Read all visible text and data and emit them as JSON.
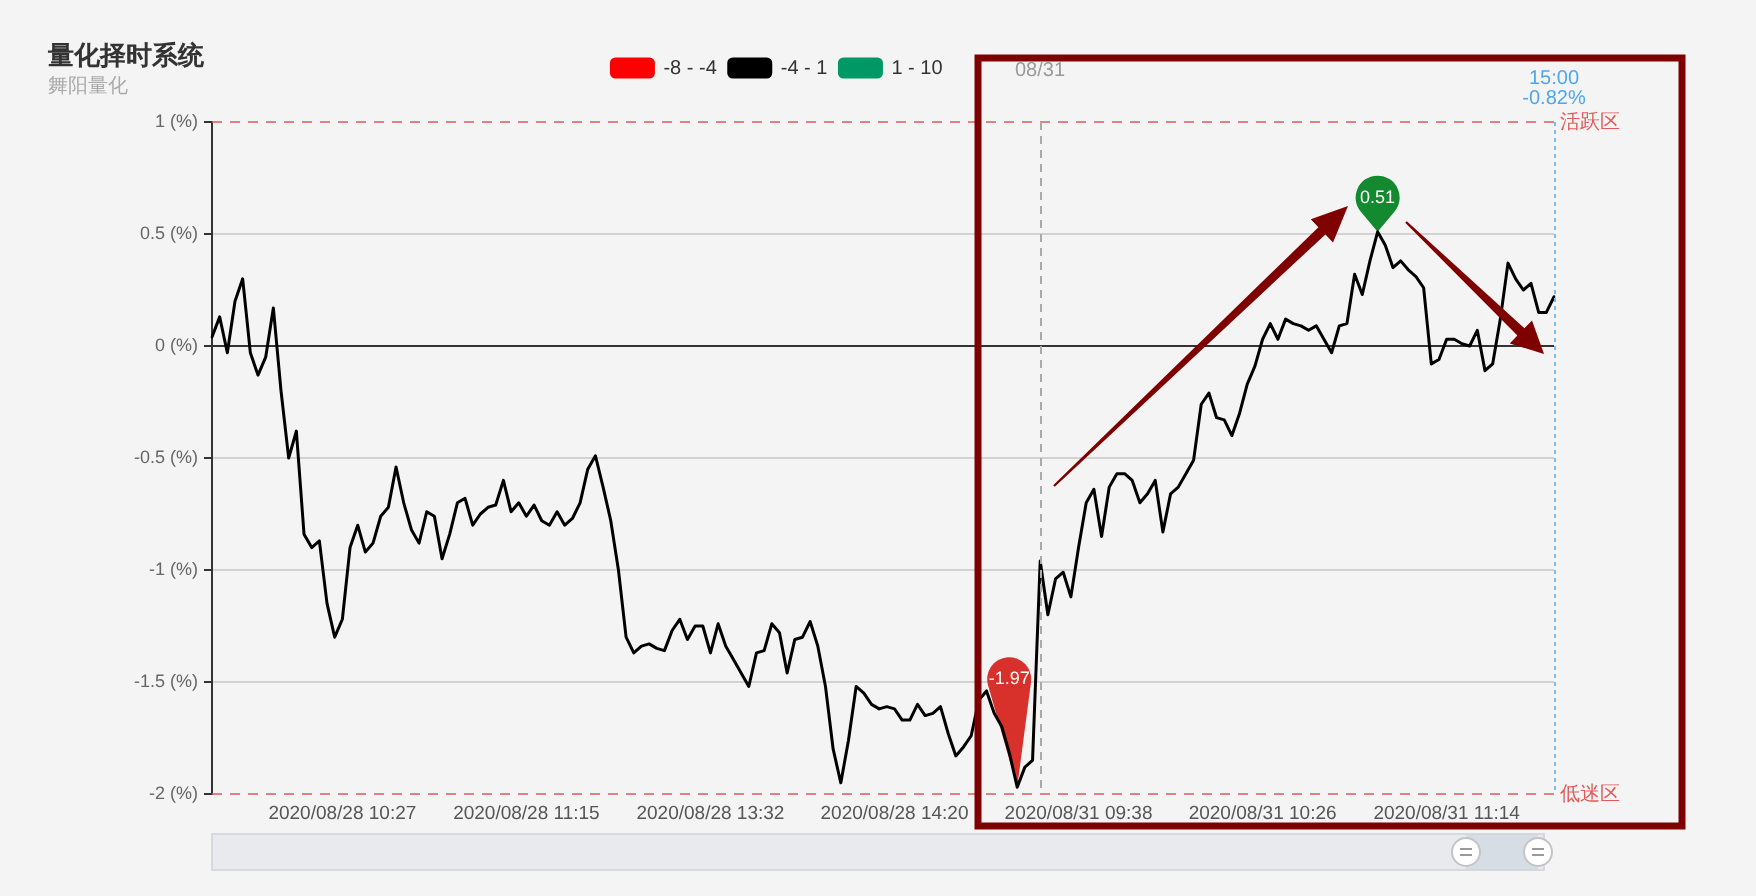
{
  "chart_data": {
    "type": "line",
    "title": "量化择时系统",
    "subtitle": "舞阳量化",
    "categories": [
      null,
      null,
      null,
      null,
      null,
      null,
      null,
      null,
      null,
      null,
      null,
      null,
      null,
      null,
      null,
      null,
      null,
      "2020/08/28 10:27",
      null,
      null,
      null,
      null,
      null,
      null,
      null,
      null,
      null,
      null,
      null,
      null,
      null,
      null,
      null,
      null,
      null,
      null,
      null,
      null,
      null,
      null,
      null,
      "2020/08/28 11:15",
      null,
      null,
      null,
      null,
      null,
      null,
      null,
      null,
      null,
      null,
      null,
      null,
      null,
      null,
      null,
      null,
      null,
      null,
      null,
      null,
      null,
      null,
      null,
      "2020/08/28 13:32",
      null,
      null,
      null,
      null,
      null,
      null,
      null,
      null,
      null,
      null,
      null,
      null,
      null,
      null,
      null,
      null,
      null,
      null,
      null,
      null,
      null,
      null,
      null,
      "2020/08/28 14:20",
      null,
      null,
      null,
      null,
      null,
      null,
      null,
      null,
      null,
      null,
      null,
      null,
      null,
      null,
      null,
      null,
      null,
      null,
      null,
      null,
      null,
      null,
      null,
      "2020/08/31 09:38",
      null,
      null,
      null,
      null,
      null,
      null,
      null,
      null,
      null,
      null,
      null,
      null,
      null,
      null,
      null,
      null,
      null,
      null,
      null,
      null,
      null,
      null,
      null,
      "2020/08/31 10:26",
      null,
      null,
      null,
      null,
      null,
      null,
      null,
      null,
      null,
      null,
      null,
      null,
      null,
      null,
      null,
      null,
      null,
      null,
      null,
      null,
      null,
      null,
      null,
      "2020/08/31 11:14",
      null,
      null,
      null,
      null,
      null,
      null,
      null,
      null,
      null,
      null,
      null,
      null,
      null,
      null
    ],
    "series": [
      {
        "name": "-8 - -4",
        "color": "#ff0000",
        "values": [
          null,
          null,
          null,
          null,
          null,
          null,
          null,
          null,
          null,
          null,
          null,
          null,
          null,
          null,
          null,
          null,
          null,
          null,
          null,
          null,
          null,
          null,
          null,
          null,
          null,
          null,
          null,
          null,
          null,
          null,
          null,
          null,
          null,
          null,
          null,
          null,
          null,
          null,
          null,
          null,
          null,
          null,
          null,
          null,
          null,
          null,
          null,
          null,
          null,
          null,
          null,
          null,
          null,
          null,
          null,
          null,
          null,
          null,
          null,
          null,
          null,
          null,
          null,
          null,
          null,
          null,
          null,
          null,
          null,
          null,
          null,
          null,
          null,
          null,
          null,
          null,
          null,
          null,
          null,
          null,
          null,
          null,
          null,
          null,
          null,
          null,
          null,
          null,
          null,
          null,
          null,
          null,
          null,
          null,
          null,
          null,
          null,
          null,
          null,
          null,
          null,
          null,
          null,
          null,
          null,
          null,
          null,
          null,
          null,
          null,
          null,
          null,
          null,
          null,
          null,
          null,
          null,
          null,
          null,
          null,
          null,
          null,
          null,
          null,
          null,
          null,
          null,
          null,
          null,
          null,
          null,
          null,
          null,
          null,
          null,
          null,
          null,
          null,
          null,
          null,
          null,
          null,
          null,
          null,
          null,
          null,
          null,
          null,
          null,
          null,
          null,
          null,
          null,
          null,
          null,
          null,
          null,
          null,
          null,
          null,
          null,
          null,
          null,
          null,
          null,
          null,
          null,
          null,
          null,
          null,
          null,
          null,
          null,
          null,
          null,
          null
        ]
      },
      {
        "name": "-4 - 1",
        "color": "#000000",
        "values": [
          0.04,
          0.13,
          -0.03,
          0.2,
          0.3,
          -0.03,
          -0.13,
          -0.05,
          0.17,
          -0.2,
          -0.5,
          -0.38,
          -0.84,
          -0.9,
          -0.87,
          -1.15,
          -1.3,
          -1.22,
          -0.9,
          -0.8,
          -0.92,
          -0.88,
          -0.76,
          -0.72,
          -0.54,
          -0.7,
          -0.82,
          -0.88,
          -0.74,
          -0.76,
          -0.95,
          -0.84,
          -0.7,
          -0.68,
          -0.8,
          -0.75,
          -0.72,
          -0.71,
          -0.6,
          -0.74,
          -0.7,
          -0.76,
          -0.71,
          -0.78,
          -0.8,
          -0.74,
          -0.8,
          -0.77,
          -0.7,
          -0.55,
          -0.49,
          -0.63,
          -0.78,
          -1,
          -1.3,
          -1.37,
          -1.34,
          -1.33,
          -1.35,
          -1.36,
          -1.27,
          -1.22,
          -1.31,
          -1.25,
          -1.25,
          -1.37,
          -1.24,
          -1.34,
          -1.4,
          -1.46,
          -1.52,
          -1.37,
          -1.36,
          -1.24,
          -1.28,
          -1.46,
          -1.31,
          -1.3,
          -1.23,
          -1.34,
          -1.52,
          -1.8,
          -1.95,
          -1.76,
          -1.52,
          -1.55,
          -1.6,
          -1.62,
          -1.61,
          -1.62,
          -1.67,
          -1.67,
          -1.6,
          -1.65,
          -1.64,
          -1.61,
          -1.73,
          -1.83,
          -1.79,
          -1.74,
          -1.58,
          -1.54,
          -1.64,
          -1.7,
          -1.82,
          -1.97,
          -1.88,
          -1.85,
          -0.96,
          -1.2,
          -1.04,
          -1.01,
          -1.12,
          -0.9,
          -0.7,
          -0.64,
          -0.85,
          -0.63,
          -0.57,
          -0.57,
          -0.6,
          -0.7,
          -0.66,
          -0.6,
          -0.83,
          -0.66,
          -0.63,
          -0.57,
          -0.51,
          -0.26,
          -0.21,
          -0.32,
          -0.33,
          -0.4,
          -0.3,
          -0.17,
          -0.09,
          0.03,
          0.1,
          0.03,
          0.12,
          0.1,
          0.09,
          0.07,
          0.09,
          0.03,
          -0.03,
          0.09,
          0.1,
          0.32,
          0.23,
          0.38,
          0.51,
          0.45,
          0.35,
          0.38,
          0.34,
          0.31,
          0.26,
          -0.08,
          -0.06,
          0.03,
          0.03,
          0.01,
          0,
          0.07,
          -0.11,
          -0.08,
          0.12,
          0.37,
          0.3,
          0.25,
          0.28,
          0.15,
          0.15,
          0.22
        ],
        "value_labels": [
          null,
          null,
          null,
          null,
          null,
          null,
          null,
          null,
          null,
          null,
          null,
          null,
          null,
          null,
          null,
          null,
          null,
          null,
          null,
          null,
          null,
          null,
          null,
          null,
          null,
          null,
          null,
          null,
          null,
          null,
          null,
          null,
          null,
          null,
          null,
          null,
          null,
          null,
          null,
          null,
          null,
          null,
          null,
          null,
          null,
          null,
          null,
          null,
          null,
          null,
          null,
          null,
          null,
          null,
          null,
          null,
          null,
          null,
          null,
          null,
          null,
          null,
          null,
          null,
          null,
          null,
          null,
          null,
          null,
          null,
          null,
          null,
          null,
          null,
          null,
          null,
          null,
          null,
          null,
          null,
          null,
          null,
          null,
          null,
          null,
          null,
          null,
          null,
          null,
          null,
          null,
          null,
          null,
          null,
          null,
          null,
          null,
          null,
          null,
          null,
          null,
          null,
          null,
          null,
          null,
          "-1.97",
          null,
          null,
          null,
          null,
          null,
          null,
          null,
          null,
          null,
          null,
          null,
          null,
          null,
          null,
          null,
          null,
          null,
          null,
          null,
          null,
          null,
          null,
          null,
          null,
          null,
          null,
          null,
          null,
          null,
          null,
          null,
          null,
          null,
          null,
          null,
          null,
          null,
          null,
          null,
          null,
          null,
          null,
          null,
          null,
          null,
          null,
          "0.51",
          null,
          null,
          null,
          null,
          null,
          null,
          null,
          null,
          null,
          null,
          null,
          null,
          null,
          null,
          null,
          null,
          null,
          null,
          null,
          null,
          null,
          null,
          null
        ]
      },
      {
        "name": "1 - 10",
        "color": "#009966",
        "values": [
          null,
          null,
          null,
          null,
          null,
          null,
          null,
          null,
          null,
          null,
          null,
          null,
          null,
          null,
          null,
          null,
          null,
          null,
          null,
          null,
          null,
          null,
          null,
          null,
          null,
          null,
          null,
          null,
          null,
          null,
          null,
          null,
          null,
          null,
          null,
          null,
          null,
          null,
          null,
          null,
          null,
          null,
          null,
          null,
          null,
          null,
          null,
          null,
          null,
          null,
          null,
          null,
          null,
          null,
          null,
          null,
          null,
          null,
          null,
          null,
          null,
          null,
          null,
          null,
          null,
          null,
          null,
          null,
          null,
          null,
          null,
          null,
          null,
          null,
          null,
          null,
          null,
          null,
          null,
          null,
          null,
          null,
          null,
          null,
          null,
          null,
          null,
          null,
          null,
          null,
          null,
          null,
          null,
          null,
          null,
          null,
          null,
          null,
          null,
          null,
          null,
          null,
          null,
          null,
          null,
          null,
          null,
          null,
          null,
          null,
          null,
          null,
          null,
          null,
          null,
          null,
          null,
          null,
          null,
          null,
          null,
          null,
          null,
          null,
          null,
          null,
          null,
          null,
          null,
          null,
          null,
          null,
          null,
          null,
          null,
          null,
          null,
          null,
          null,
          null,
          null,
          null,
          null,
          null,
          null,
          null,
          null,
          null,
          null,
          null,
          null,
          null,
          null,
          null,
          null,
          null,
          null,
          null,
          null,
          null,
          null,
          null,
          null,
          null,
          null,
          null,
          null,
          null,
          null,
          null,
          null,
          null,
          null,
          null,
          null,
          null
        ]
      }
    ],
    "ylim": [
      -2,
      1
    ],
    "yticks": [
      {
        "value": -2,
        "label": "-2 (%)"
      },
      {
        "value": -1.5,
        "label": "-1.5 (%)"
      },
      {
        "value": -1,
        "label": "-1 (%)"
      },
      {
        "value": -0.5,
        "label": "-0.5 (%)"
      },
      {
        "value": 0,
        "label": "0 (%)"
      },
      {
        "value": 0.5,
        "label": "0.5 (%)"
      },
      {
        "value": 1,
        "label": "1 (%)"
      }
    ],
    "grid": "y",
    "legend": "top",
    "ref_lines": [
      {
        "axis": "y",
        "value": 1,
        "label": "活跃区",
        "color": "#e05a5a",
        "line_style": "dashed"
      },
      {
        "axis": "y",
        "value": -2,
        "label": "低迷区",
        "color": "#e05a5a",
        "line_style": "dashed"
      }
    ],
    "annotations": [
      "08/31",
      "15:00\n-0.82%"
    ]
  }
}
